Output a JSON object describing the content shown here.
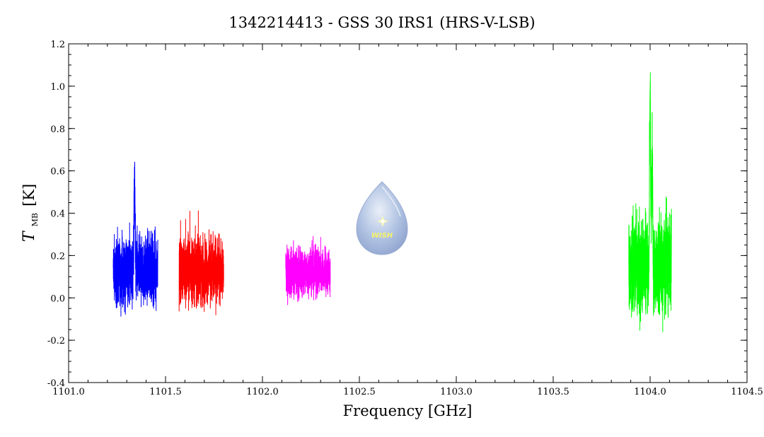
{
  "chart_data": {
    "type": "line",
    "title": "1342214413 - GSS 30 IRS1 (HRS-V-LSB)",
    "xlabel": "Frequency [GHz]",
    "ylabel_main": "T",
    "ylabel_sub": "MB",
    "ylabel_unit": "[K]",
    "xlim": [
      1101.0,
      1104.5
    ],
    "ylim": [
      -0.4,
      1.2
    ],
    "xticks": [
      "1101.0",
      "1101.5",
      "1102.0",
      "1102.5",
      "1103.0",
      "1103.5",
      "1104.0",
      "1104.5"
    ],
    "yticks": [
      "-0.4",
      "-0.2",
      "0.0",
      "0.2",
      "0.4",
      "0.6",
      "0.8",
      "1.0",
      "1.2"
    ],
    "grid": false,
    "series": [
      {
        "color": "#0000ff",
        "x_range": [
          1101.23,
          1101.46
        ],
        "baseline": 0.13,
        "noise_range": [
          -0.1,
          0.4
        ],
        "peaks": [
          {
            "x": 1101.34,
            "y": 0.7
          }
        ]
      },
      {
        "color": "#ff0000",
        "x_range": [
          1101.57,
          1101.8
        ],
        "baseline": 0.13,
        "noise_range": [
          -0.1,
          0.45
        ],
        "peaks": []
      },
      {
        "color": "#ff00ff",
        "x_range": [
          1102.12,
          1102.35
        ],
        "baseline": 0.12,
        "noise_range": [
          -0.05,
          0.37
        ],
        "peaks": []
      },
      {
        "color": "#00ff00",
        "x_range": [
          1103.89,
          1104.11
        ],
        "baseline": 0.15,
        "noise_range": [
          -0.17,
          0.52
        ],
        "peaks": [
          {
            "x": 1104.0,
            "y": 1.07
          },
          {
            "x": 1104.01,
            "y": 0.83
          }
        ]
      }
    ]
  },
  "logo": {
    "label": "WISH",
    "icon": "wish-drop-logo"
  }
}
